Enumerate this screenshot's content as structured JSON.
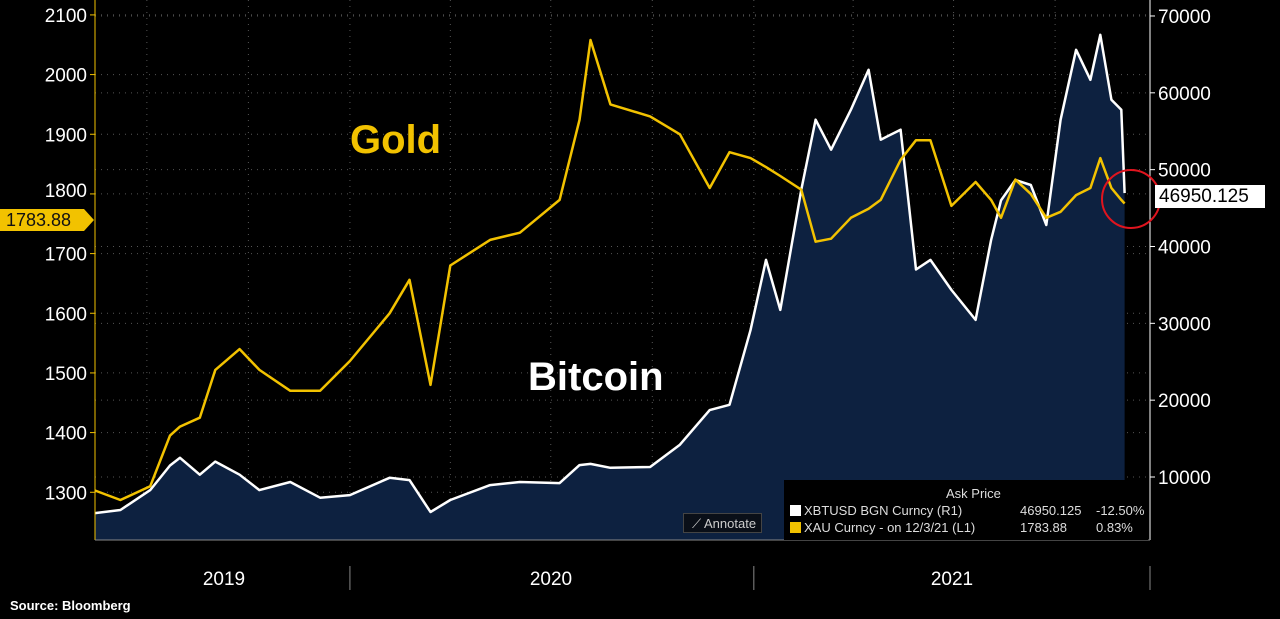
{
  "chart_data": {
    "type": "line",
    "title": "",
    "xlabel": "",
    "x_tick_labels": [
      "2019",
      "2020",
      "2021"
    ],
    "xlim": [
      "2019-05-15",
      "2021-12-26"
    ],
    "left_axis": {
      "ylim": [
        1220,
        2125
      ],
      "ticks": [
        1300,
        1400,
        1500,
        1600,
        1700,
        1800,
        1900,
        2000,
        2100
      ]
    },
    "right_axis": {
      "ylim": [
        1800,
        72080
      ],
      "ticks": [
        10000,
        20000,
        30000,
        40000,
        50000,
        60000,
        70000
      ]
    },
    "grid": true,
    "dates": [
      "2019-05-15",
      "2019-06-07",
      "2019-07-04",
      "2019-07-22",
      "2019-07-31",
      "2019-08-18",
      "2019-09-01",
      "2019-09-23",
      "2019-10-11",
      "2019-11-08",
      "2019-12-05",
      "2020-01-01",
      "2020-02-06",
      "2020-02-24",
      "2020-03-14",
      "2020-04-01",
      "2020-05-07",
      "2020-06-03",
      "2020-07-09",
      "2020-07-27",
      "2020-08-06",
      "2020-08-24",
      "2020-09-29",
      "2020-10-26",
      "2020-11-22",
      "2020-12-10",
      "2020-12-29",
      "2021-01-12",
      "2021-01-25",
      "2021-02-13",
      "2021-02-26",
      "2021-03-12",
      "2021-03-30",
      "2021-04-15",
      "2021-04-26",
      "2021-05-14",
      "2021-05-28",
      "2021-06-10",
      "2021-06-29",
      "2021-07-21",
      "2021-08-04",
      "2021-08-13",
      "2021-08-26",
      "2021-09-09",
      "2021-09-23",
      "2021-10-06",
      "2021-10-20",
      "2021-11-02",
      "2021-11-11",
      "2021-11-21",
      "2021-11-30",
      "2021-12-03"
    ],
    "series": [
      {
        "name": "XBTUSD BGN Curncy",
        "axis": "right",
        "color": "#ffffff",
        "fill": "#0d2140",
        "values": [
          5300,
          5700,
          8300,
          11500,
          12500,
          10300,
          12000,
          10300,
          8300,
          9350,
          7300,
          7650,
          9900,
          9600,
          5450,
          7000,
          8950,
          9350,
          9200,
          11550,
          11700,
          11200,
          11300,
          14200,
          18700,
          19400,
          29100,
          38250,
          31750,
          47400,
          56500,
          52600,
          57800,
          63000,
          53900,
          55200,
          37000,
          38250,
          34350,
          30450,
          40850,
          46000,
          48650,
          48000,
          42800,
          56500,
          65600,
          61700,
          67550,
          59100,
          57800,
          46950.125
        ]
      },
      {
        "name": "XAU Curncy",
        "axis": "left",
        "color": "#f2c200",
        "values": [
          1303,
          1287,
          1310,
          1395,
          1410,
          1425,
          1505,
          1540,
          1505,
          1470,
          1470,
          1520,
          1600,
          1656,
          1480,
          1680,
          1723,
          1735,
          1790,
          1924,
          2058,
          1950,
          1930,
          1900,
          1810,
          1870,
          1860,
          1845,
          1830,
          1807,
          1720,
          1725,
          1760,
          1775,
          1790,
          1857,
          1890,
          1890,
          1780,
          1820,
          1790,
          1760,
          1824,
          1800,
          1760,
          1770,
          1798,
          1810,
          1860,
          1810,
          1790,
          1783.88
        ]
      }
    ],
    "annotations": {
      "gold": "Gold",
      "bitcoin": "Bitcoin"
    }
  },
  "last_value_left": "1783.88",
  "last_value_right": "46950.125",
  "legend": {
    "header": "Ask Price",
    "rows": [
      {
        "label": "XBTUSD BGN Curncy  (R1)",
        "value": "46950.125",
        "change": "-12.50%",
        "color": "#ffffff"
      },
      {
        "label": "XAU Curncy -  on 12/3/21  (L1)",
        "value": "1783.88",
        "change": "0.83%",
        "color": "#f2c200"
      }
    ]
  },
  "annotate_label": "Annotate",
  "source": "Source: Bloomberg",
  "colors": {
    "background": "#000000",
    "area": "#0d2140",
    "gold": "#f2c200",
    "highlight_circle": "#e0141e"
  }
}
